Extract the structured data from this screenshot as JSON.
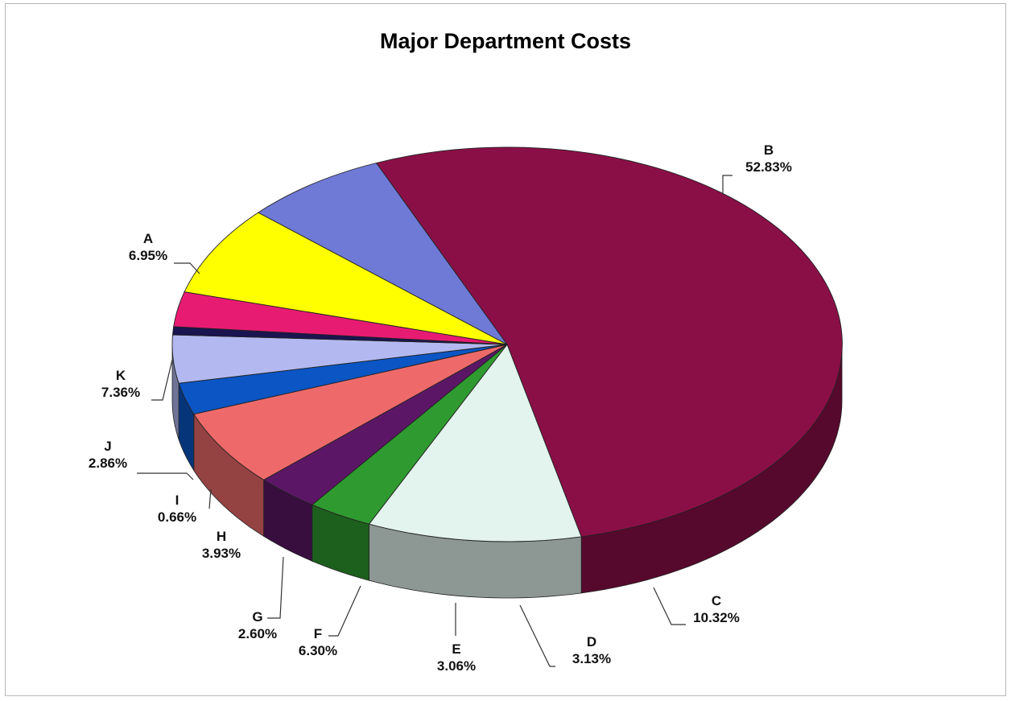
{
  "chart_data": {
    "type": "pie",
    "title": "Major Department Costs",
    "three_d": true,
    "slices": [
      {
        "name": "B",
        "pct_label": "52.83%",
        "value": 52.83,
        "color": "#8b0f47"
      },
      {
        "name": "C",
        "pct_label": "10.32%",
        "value": 10.32,
        "color": "#e3f3ee"
      },
      {
        "name": "D",
        "pct_label": "3.13%",
        "value": 3.13,
        "color": "#2f9a2f"
      },
      {
        "name": "E",
        "pct_label": "3.06%",
        "value": 3.06,
        "color": "#5b1766"
      },
      {
        "name": "F",
        "pct_label": "6.30%",
        "value": 6.3,
        "color": "#ee6a6a"
      },
      {
        "name": "G",
        "pct_label": "2.60%",
        "value": 2.6,
        "color": "#0b55c4"
      },
      {
        "name": "H",
        "pct_label": "3.93%",
        "value": 3.93,
        "color": "#b3b9f0"
      },
      {
        "name": "I",
        "pct_label": "0.66%",
        "value": 0.66,
        "color": "#1a1450"
      },
      {
        "name": "J",
        "pct_label": "2.86%",
        "value": 2.86,
        "color": "#e81b73"
      },
      {
        "name": "K",
        "pct_label": "7.36%",
        "value": 7.36,
        "color": "#ffff00"
      },
      {
        "name": "A",
        "pct_label": "6.95%",
        "value": 6.95,
        "color": "#6f79d6"
      }
    ]
  }
}
